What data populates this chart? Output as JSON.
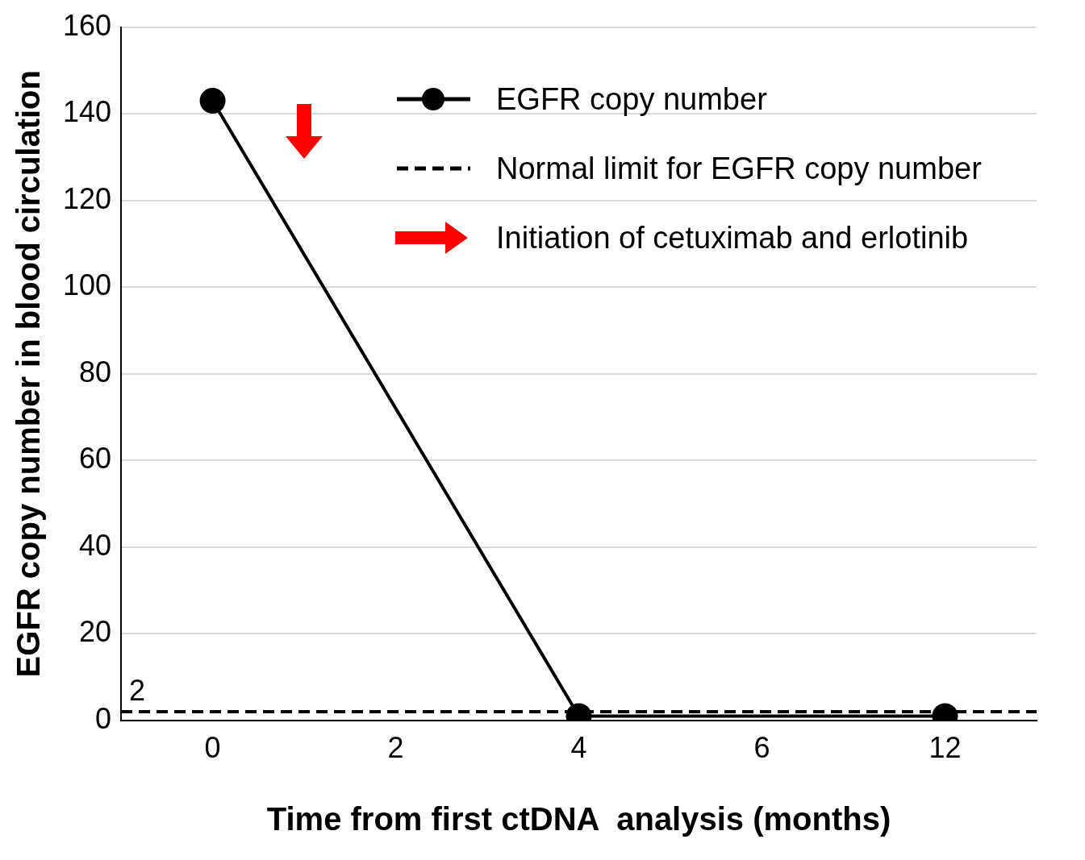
{
  "chart_data": {
    "type": "line",
    "xlabel": "Time from first ctDNA  analysis (months)",
    "ylabel": "EGFR copy number in blood circulation",
    "categories": [
      "0",
      "2",
      "4",
      "6",
      "12"
    ],
    "series": [
      {
        "name": "EGFR copy number",
        "color": "#000000",
        "values": [
          143,
          null,
          1,
          null,
          1
        ]
      }
    ],
    "ylim": [
      0,
      160
    ],
    "yticks": [
      0,
      20,
      40,
      60,
      80,
      100,
      120,
      140,
      160
    ],
    "ref_lines": [
      {
        "axis": "y",
        "value": 2,
        "label": "Normal limit for EGFR copy number",
        "color": "#000000",
        "line_style": "dashed"
      }
    ],
    "annotations": [
      {
        "text": "2",
        "y": 2
      },
      "Initiation of cetuximab and erlotinib"
    ],
    "grid": "y",
    "legend": "top right",
    "marker": "circle",
    "line_style": "solid"
  }
}
